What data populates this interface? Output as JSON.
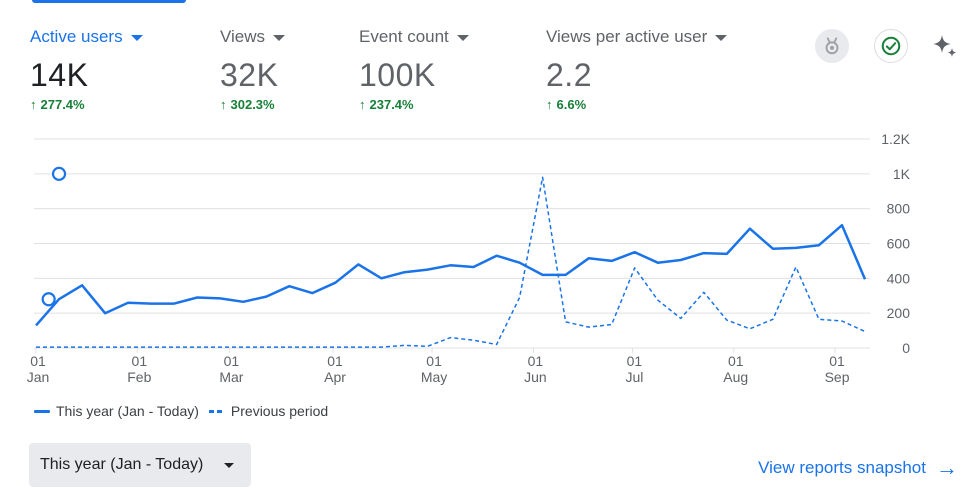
{
  "metrics": [
    {
      "name": "Active users",
      "value": "14K",
      "change": "277.4%",
      "active": true
    },
    {
      "name": "Views",
      "value": "32K",
      "change": "302.3%",
      "active": false
    },
    {
      "name": "Event count",
      "value": "100K",
      "change": "237.4%",
      "active": false
    },
    {
      "name": "Views per active user",
      "value": "2.2",
      "change": "6.6%",
      "active": false
    }
  ],
  "icons": {
    "insights_badge": "medal-icon",
    "status": "check-circle-icon",
    "ai": "sparkle-icon"
  },
  "colors": {
    "accent": "#1a73e8",
    "positive": "#188038",
    "grid": "#e0e0e0",
    "axis_text": "#5f6368"
  },
  "chart_data": {
    "type": "line",
    "title": "",
    "xlabel": "",
    "ylabel": "",
    "ylim": [
      0,
      1200
    ],
    "y_ticks": [
      "0",
      "200",
      "400",
      "600",
      "800",
      "1K",
      "1.2K"
    ],
    "y_tick_values": [
      0,
      200,
      400,
      600,
      800,
      1000,
      1200
    ],
    "x_tick_labels": [
      {
        "day": "01",
        "month": "Jan",
        "index": 0
      },
      {
        "day": "01",
        "month": "Feb",
        "index": 4.4
      },
      {
        "day": "01",
        "month": "Mar",
        "index": 8.4
      },
      {
        "day": "01",
        "month": "Apr",
        "index": 12.9
      },
      {
        "day": "01",
        "month": "May",
        "index": 17.2
      },
      {
        "day": "01",
        "month": "Jun",
        "index": 21.6
      },
      {
        "day": "01",
        "month": "Jul",
        "index": 25.9
      },
      {
        "day": "01",
        "month": "Aug",
        "index": 30.3
      },
      {
        "day": "01",
        "month": "Sep",
        "index": 34.7
      }
    ],
    "series": [
      {
        "name": "This year (Jan - Today)",
        "style": "solid",
        "values": [
          130,
          280,
          360,
          200,
          260,
          255,
          255,
          290,
          285,
          265,
          295,
          355,
          315,
          375,
          480,
          400,
          435,
          450,
          475,
          465,
          530,
          490,
          420,
          420,
          515,
          500,
          550,
          490,
          505,
          545,
          540,
          685,
          570,
          575,
          590,
          705,
          395
        ]
      },
      {
        "name": "Previous period",
        "style": "dashed",
        "values": [
          5,
          5,
          5,
          5,
          5,
          5,
          5,
          5,
          5,
          5,
          5,
          5,
          5,
          5,
          5,
          5,
          15,
          10,
          60,
          45,
          20,
          290,
          980,
          150,
          120,
          135,
          460,
          275,
          170,
          320,
          160,
          110,
          165,
          465,
          165,
          155,
          95
        ]
      }
    ],
    "annotations": [
      {
        "type": "circle",
        "series_value": 1000,
        "index": 1
      },
      {
        "type": "circle",
        "series_value": 280,
        "index": 0.55
      }
    ],
    "legend_placement": "bottom-left",
    "grid": true
  },
  "legend": {
    "this_year": "This year (Jan - Today)",
    "previous": "Previous period"
  },
  "period_select": {
    "label": "This year (Jan - Today)"
  },
  "snapshot_link": {
    "label": "View reports snapshot",
    "arrow": "→"
  }
}
